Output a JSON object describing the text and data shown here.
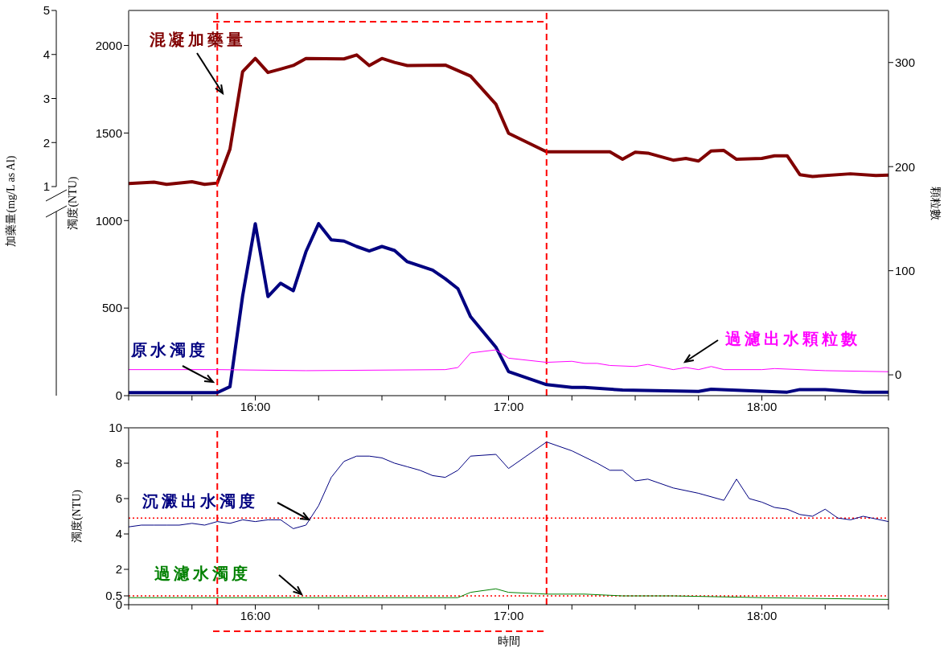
{
  "chart_data": [
    {
      "type": "line",
      "xlim": [
        15.5,
        18.5
      ],
      "xticks": [
        {
          "value": 15.5,
          "label": null
        },
        {
          "value": 15.75,
          "label": null
        },
        {
          "value": 16,
          "label": "16:00"
        },
        {
          "value": 16.25,
          "label": null
        },
        {
          "value": 16.5,
          "label": null
        },
        {
          "value": 16.75,
          "label": null
        },
        {
          "value": 17,
          "label": "17:00"
        },
        {
          "value": 17.25,
          "label": null
        },
        {
          "value": 17.5,
          "label": null
        },
        {
          "value": 17.75,
          "label": null
        },
        {
          "value": 18,
          "label": "18:00"
        },
        {
          "value": 18.25,
          "label": null
        },
        {
          "value": 18.5,
          "label": null
        }
      ],
      "ylabel": "濁度(NTU)",
      "ylim": [
        0,
        2200
      ],
      "yticks": [
        0,
        500,
        1000,
        1500,
        2000
      ],
      "y2label": "顆粒數",
      "y2lim": [
        -20,
        350
      ],
      "y2ticks": [
        0,
        100,
        200,
        300
      ],
      "y3label": "加藥量(mg/L as Al)",
      "y3lim": [
        1,
        5
      ],
      "y3ticks": [
        1,
        2,
        3,
        4,
        5
      ],
      "marker": "none",
      "ref_lines": [
        {
          "axis": "x",
          "value": 15.85,
          "color": "#ff0000",
          "line_style": "dashed"
        },
        {
          "axis": "x",
          "value": 17.15,
          "color": "#ff0000",
          "line_style": "dashed"
        }
      ],
      "series": [
        {
          "name": "混凝加藥量",
          "color": "#800000",
          "axis": "y3",
          "x": [
            15.5,
            15.6,
            15.65,
            15.75,
            15.8,
            15.85,
            15.9,
            15.95,
            16.0,
            16.05,
            16.1,
            16.15,
            16.2,
            16.35,
            16.4,
            16.45,
            16.5,
            16.55,
            16.6,
            16.75,
            16.85,
            16.95,
            17.0,
            17.15,
            17.4,
            17.45,
            17.5,
            17.55,
            17.65,
            17.7,
            17.75,
            17.8,
            17.85,
            17.9,
            18.0,
            18.05,
            18.1,
            18.15,
            18.2,
            18.35,
            18.45,
            18.5
          ],
          "values": [
            1.07,
            1.1,
            1.05,
            1.11,
            1.05,
            1.08,
            1.85,
            3.61,
            3.91,
            3.59,
            3.67,
            3.75,
            3.91,
            3.9,
            3.99,
            3.75,
            3.91,
            3.82,
            3.75,
            3.76,
            3.51,
            2.87,
            2.21,
            1.79,
            1.79,
            1.62,
            1.78,
            1.76,
            1.6,
            1.64,
            1.58,
            1.81,
            1.82,
            1.62,
            1.64,
            1.7,
            1.7,
            1.27,
            1.23,
            1.29,
            1.25,
            1.26
          ]
        },
        {
          "name": "原水濁度",
          "color": "#000080",
          "x": [
            15.5,
            15.85,
            15.9,
            15.95,
            16.0,
            16.05,
            16.1,
            16.15,
            16.2,
            16.25,
            16.3,
            16.35,
            16.4,
            16.45,
            16.5,
            16.55,
            16.6,
            16.7,
            16.75,
            16.8,
            16.85,
            16.95,
            17.0,
            17.15,
            17.25,
            17.3,
            17.45,
            17.75,
            17.8,
            18.1,
            18.15,
            18.25,
            18.4,
            18.5
          ],
          "values": [
            17,
            17,
            51,
            569,
            982,
            566,
            642,
            599,
            822,
            982,
            890,
            883,
            852,
            826,
            852,
            829,
            765,
            717,
            668,
            611,
            451,
            277,
            137,
            63,
            47,
            47,
            32,
            24,
            37,
            20,
            35,
            35,
            20,
            20
          ]
        },
        {
          "name": "過濾出水顆粒數",
          "color": "#ff00ff",
          "axis": "y2",
          "x": [
            15.5,
            15.85,
            16.2,
            16.75,
            16.8,
            16.85,
            16.95,
            17.0,
            17.15,
            17.25,
            17.3,
            17.35,
            17.4,
            17.5,
            17.55,
            17.65,
            17.7,
            17.75,
            17.8,
            17.85,
            18.0,
            18.05,
            18.25,
            18.5
          ],
          "values": [
            5,
            5,
            4,
            5,
            7,
            21,
            24,
            16,
            12,
            13,
            11,
            11,
            9,
            8,
            10,
            5,
            7,
            5,
            8,
            5,
            5,
            6,
            4,
            3
          ]
        }
      ]
    },
    {
      "type": "line",
      "xlabel": "時間",
      "xlim": [
        15.5,
        18.5
      ],
      "xticks": [
        {
          "value": 15.5,
          "label": null
        },
        {
          "value": 15.75,
          "label": null
        },
        {
          "value": 16,
          "label": "16:00"
        },
        {
          "value": 16.25,
          "label": null
        },
        {
          "value": 16.5,
          "label": null
        },
        {
          "value": 16.75,
          "label": null
        },
        {
          "value": 17,
          "label": "17:00"
        },
        {
          "value": 17.25,
          "label": null
        },
        {
          "value": 17.5,
          "label": null
        },
        {
          "value": 17.75,
          "label": null
        },
        {
          "value": 18,
          "label": "18:00"
        },
        {
          "value": 18.25,
          "label": null
        },
        {
          "value": 18.5,
          "label": null
        }
      ],
      "ylabel": "濁度(NTU)",
      "ylim": [
        0,
        10
      ],
      "yticks": [
        0,
        0.5,
        2,
        4,
        6,
        8,
        10
      ],
      "marker": "none",
      "ref_lines": [
        {
          "axis": "x",
          "value": 15.85,
          "color": "#ff0000",
          "line_style": "dashed"
        },
        {
          "axis": "x",
          "value": 17.15,
          "color": "#ff0000",
          "line_style": "dashed"
        },
        {
          "axis": "y",
          "value": 4.9,
          "color": "#ff0000",
          "line_style": "dotted"
        },
        {
          "axis": "y",
          "value": 0.5,
          "color": "#ff0000",
          "line_style": "dotted"
        }
      ],
      "series": [
        {
          "name": "沉澱出水濁度",
          "color": "#000080",
          "x": [
            15.5,
            15.55,
            15.6,
            15.65,
            15.7,
            15.75,
            15.8,
            15.85,
            15.9,
            15.95,
            16.0,
            16.05,
            16.1,
            16.15,
            16.2,
            16.25,
            16.3,
            16.35,
            16.4,
            16.45,
            16.5,
            16.55,
            16.6,
            16.65,
            16.7,
            16.75,
            16.8,
            16.85,
            16.95,
            17.0,
            17.15,
            17.25,
            17.35,
            17.4,
            17.45,
            17.5,
            17.55,
            17.65,
            17.75,
            17.85,
            17.9,
            17.95,
            18.0,
            18.05,
            18.1,
            18.15,
            18.2,
            18.25,
            18.3,
            18.35,
            18.4,
            18.5
          ],
          "values": [
            4.4,
            4.5,
            4.5,
            4.5,
            4.5,
            4.6,
            4.5,
            4.7,
            4.6,
            4.8,
            4.7,
            4.8,
            4.8,
            4.3,
            4.5,
            5.6,
            7.2,
            8.1,
            8.4,
            8.4,
            8.3,
            8.0,
            7.8,
            7.6,
            7.3,
            7.2,
            7.6,
            8.4,
            8.5,
            7.7,
            9.2,
            8.7,
            8.0,
            7.6,
            7.6,
            7.0,
            7.1,
            6.6,
            6.3,
            5.9,
            7.1,
            6.0,
            5.8,
            5.5,
            5.4,
            5.1,
            5.0,
            5.4,
            4.9,
            4.8,
            5.0,
            4.7
          ]
        },
        {
          "name": "過濾水濁度",
          "color": "#008000",
          "x": [
            15.5,
            16.8,
            16.85,
            16.95,
            17.0,
            17.15,
            17.3,
            17.45,
            17.65,
            18.0,
            18.5
          ],
          "values": [
            0.4,
            0.4,
            0.7,
            0.9,
            0.7,
            0.6,
            0.6,
            0.5,
            0.5,
            0.4,
            0.3
          ]
        }
      ]
    }
  ]
}
